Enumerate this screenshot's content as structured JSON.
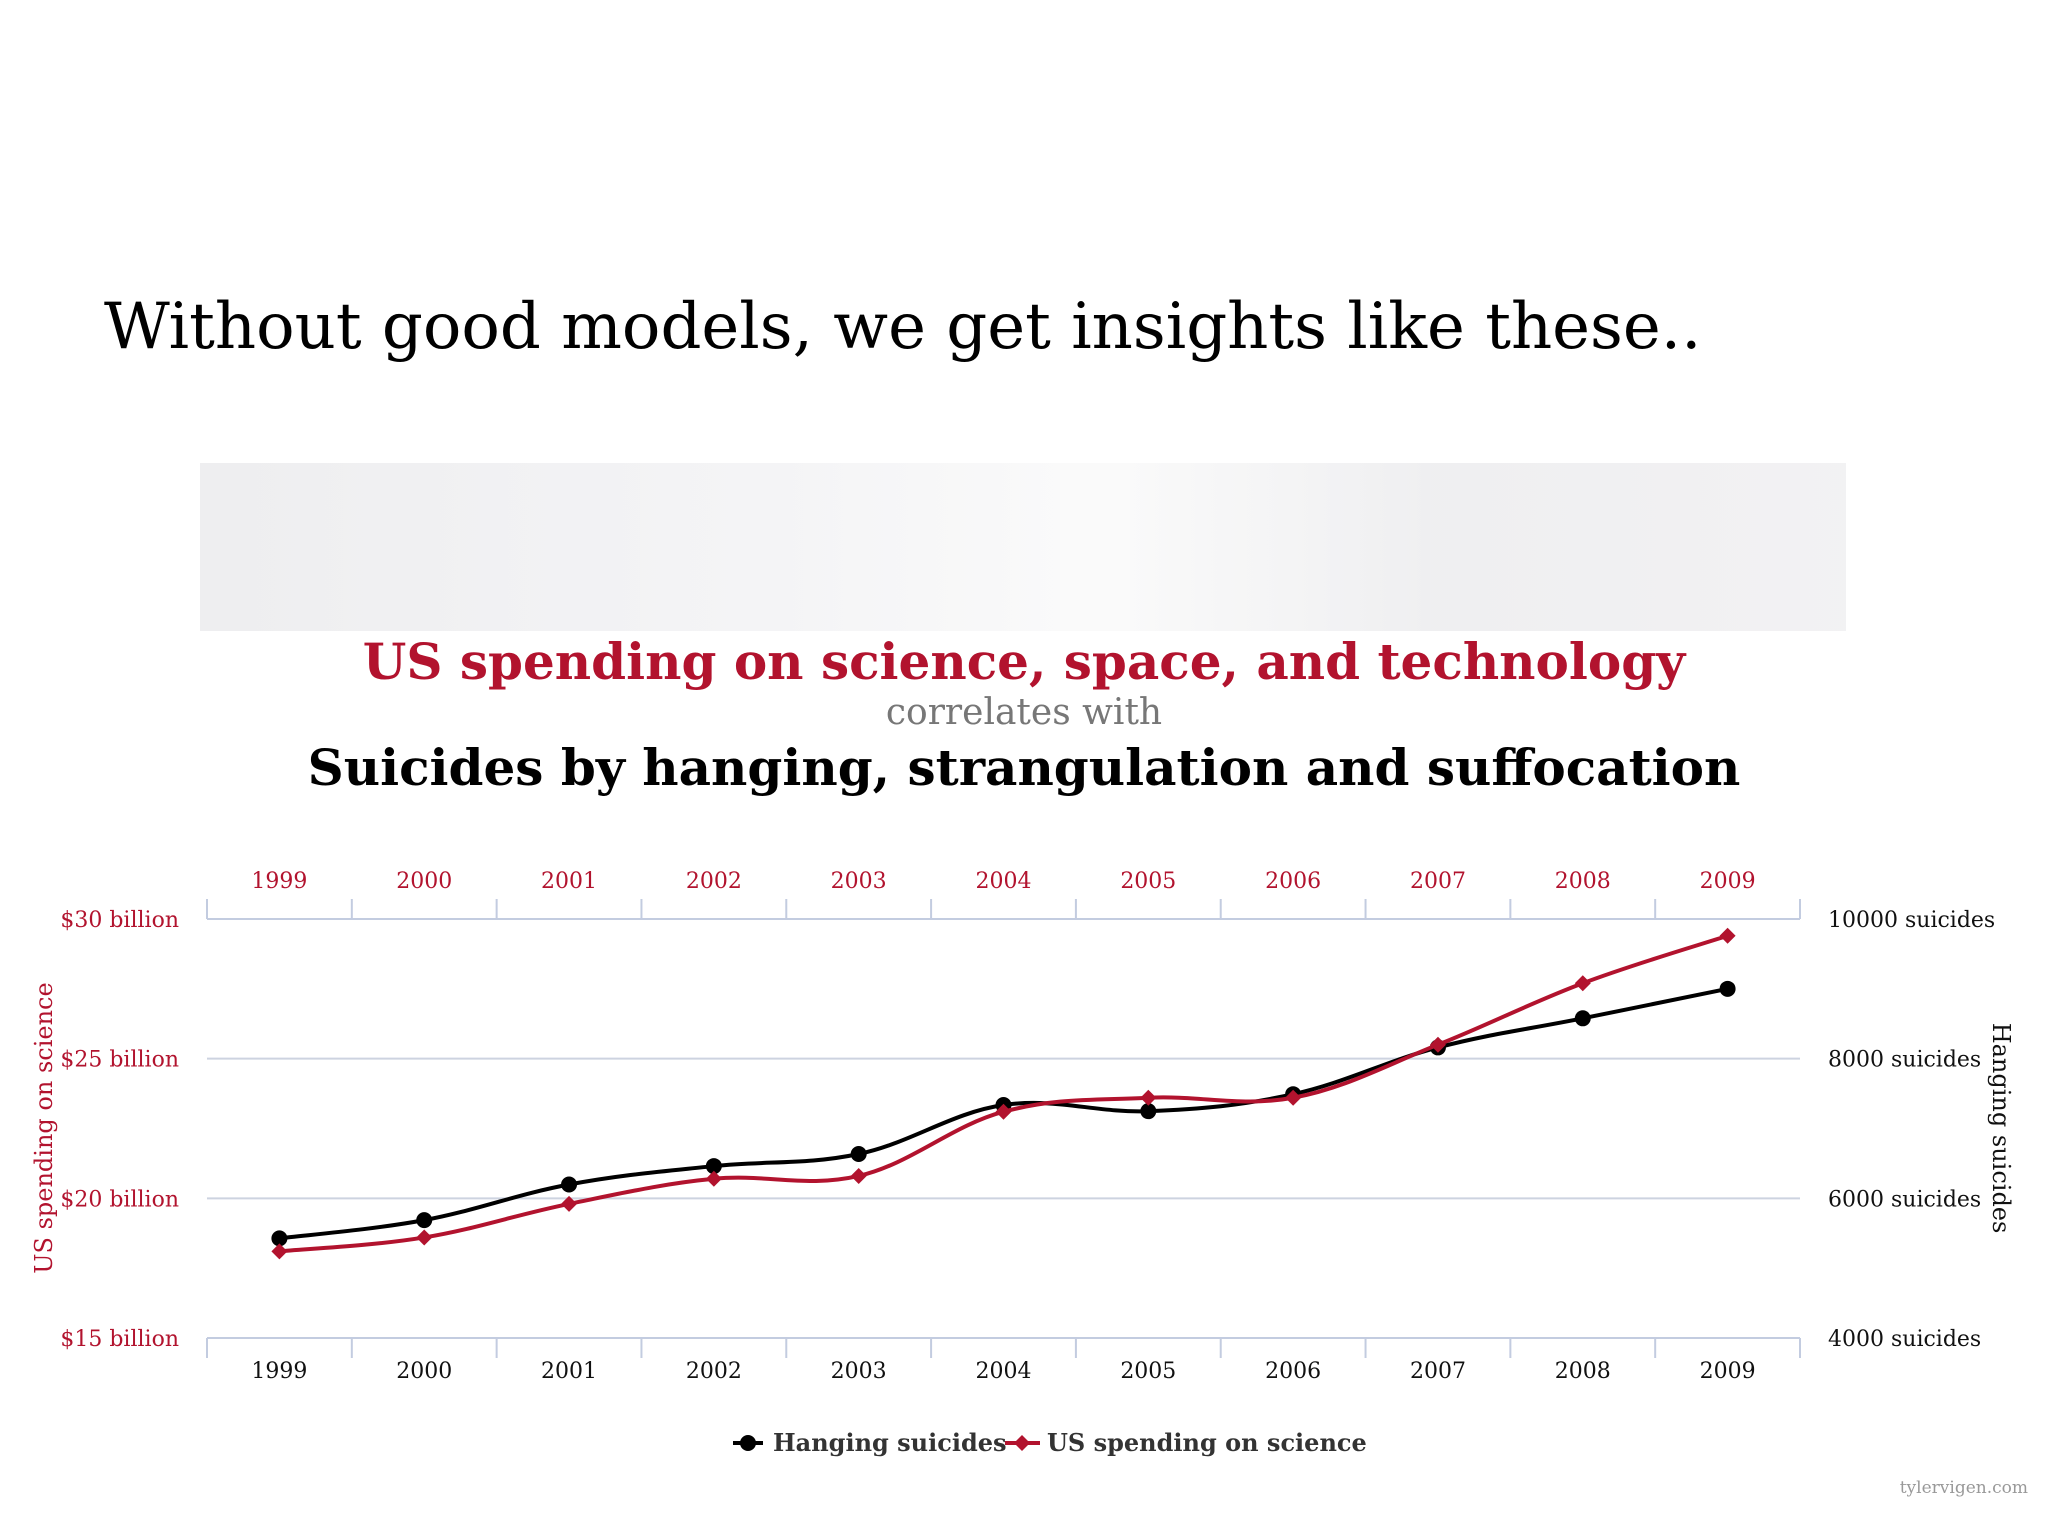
{
  "slide": {
    "title": "Without good models, we get insights like these.."
  },
  "chart_data": {
    "type": "line",
    "title_line1": "US spending on science, space, and technology",
    "title_connector": "correlates with",
    "title_line2": "Suicides by hanging, strangulation and suffocation",
    "x": [
      1999,
      2000,
      2001,
      2002,
      2003,
      2004,
      2005,
      2006,
      2007,
      2008,
      2009
    ],
    "left_axis": {
      "label": "US spending on science",
      "range": [
        15,
        30
      ],
      "ticks": [
        15,
        20,
        25,
        30
      ],
      "tick_labels": [
        "$15 billion",
        "$20 billion",
        "$25 billion",
        "$30 billion"
      ],
      "color": "#b2132e"
    },
    "right_axis": {
      "label": "Hanging suicides",
      "range": [
        4000,
        10000
      ],
      "ticks": [
        4000,
        6000,
        8000,
        10000
      ],
      "tick_labels": [
        "4000 suicides",
        "6000 suicides",
        "8000 suicides",
        "10000 suicides"
      ],
      "color": "#111111"
    },
    "series": [
      {
        "name": "Hanging suicides",
        "axis": "right",
        "color": "#000000",
        "marker": "circle",
        "values": [
          5427,
          5688,
          6198,
          6462,
          6635,
          7336,
          7248,
          7491,
          8161,
          8578,
          9000
        ]
      },
      {
        "name": "US spending on science",
        "axis": "left",
        "color": "#b2132e",
        "marker": "diamond",
        "values": [
          18.1,
          18.6,
          19.8,
          20.7,
          20.8,
          23.1,
          23.6,
          23.6,
          25.5,
          27.7,
          29.4
        ]
      }
    ],
    "grid": true,
    "legend_position": "bottom-center"
  },
  "watermark": "tylervigen.com"
}
